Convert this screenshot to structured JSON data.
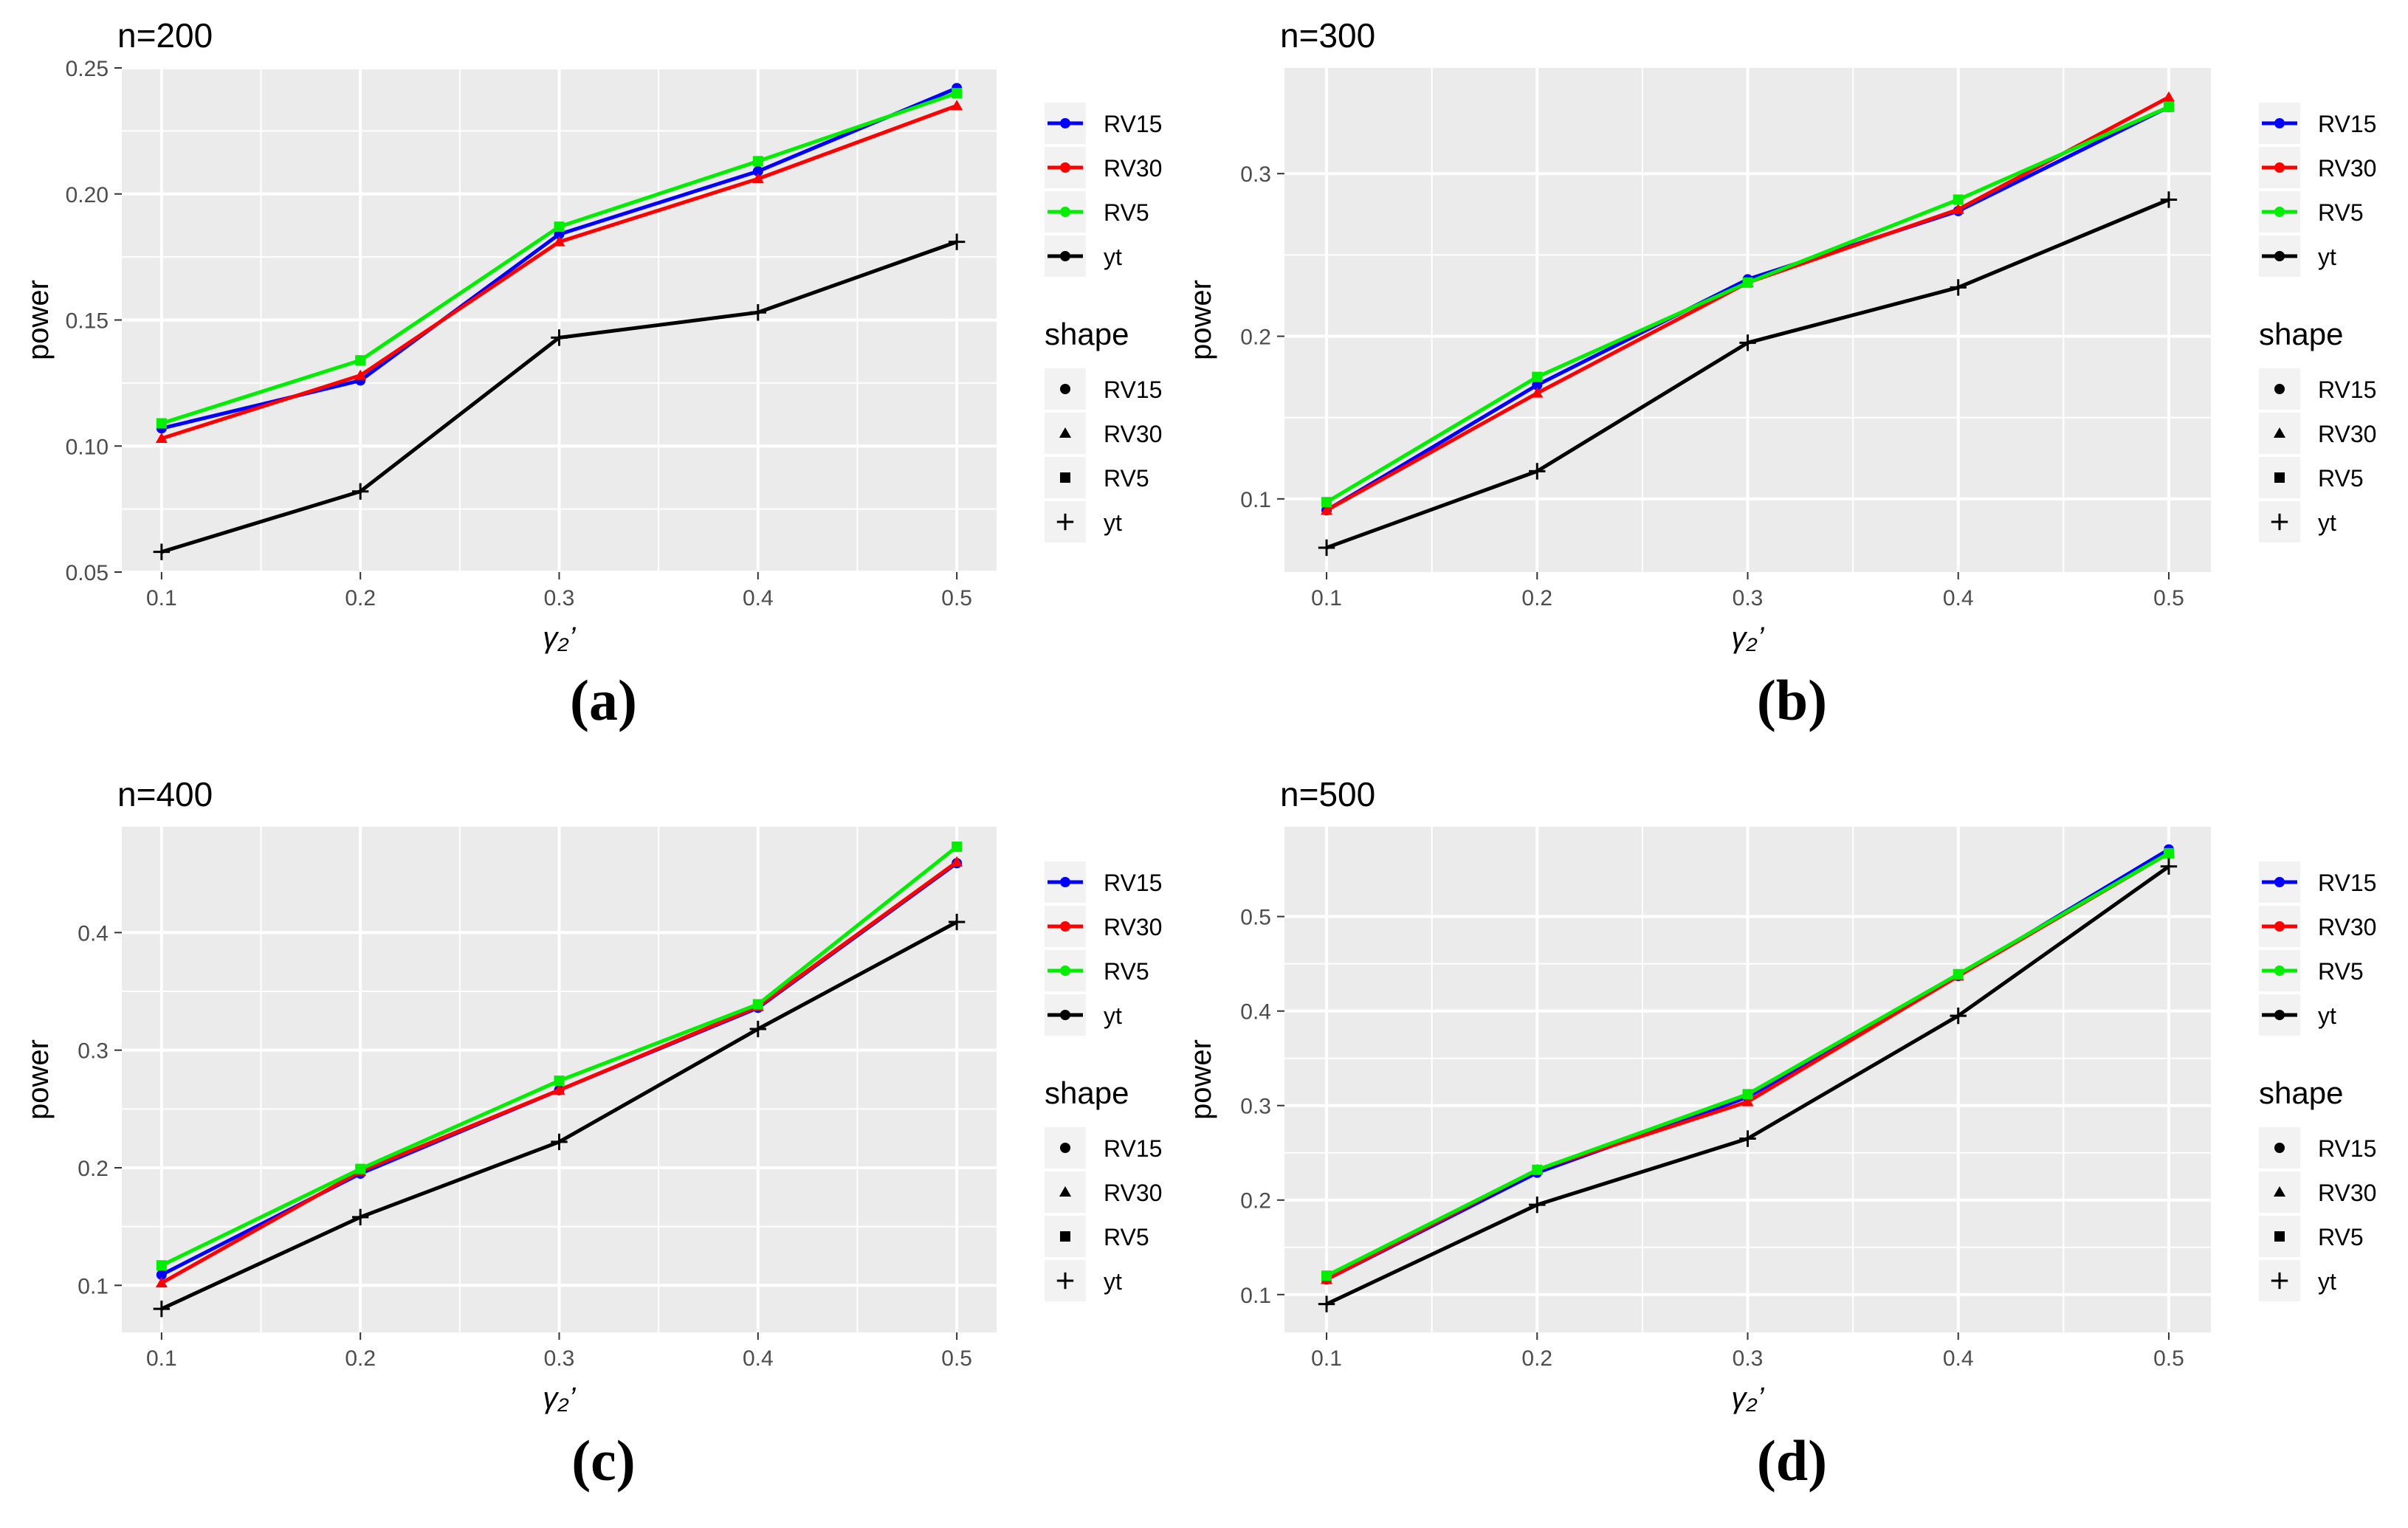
{
  "legend_titles": {
    "shape": "shape"
  },
  "shapes": [
    "circle",
    "triangle",
    "square",
    "plus"
  ],
  "colors": {
    "RV15": "#0000ff",
    "RV30": "#ff0000",
    "RV5": "#00ee00",
    "yt": "#000000",
    "panel_bg": "#ebebeb",
    "grid": "#ffffff",
    "axis_text": "#4d4d4d"
  },
  "chart_data": [
    {
      "type": "line",
      "title": "n=200",
      "caption": "(a)",
      "xlabel": "γ₂’",
      "ylabel": "power",
      "xlim": [
        0.08,
        0.52
      ],
      "ylim": [
        0.05,
        0.25
      ],
      "x": [
        0.1,
        0.2,
        0.3,
        0.4,
        0.5
      ],
      "xticks": [
        "0.1",
        "0.2",
        "0.3",
        "0.4",
        "0.5"
      ],
      "yticks": [
        0.05,
        0.1,
        0.15,
        0.2,
        0.25
      ],
      "ytick_labels": [
        "0.05",
        "0.10",
        "0.15",
        "0.20",
        "0.25"
      ],
      "series": [
        {
          "name": "RV15",
          "values": [
            0.107,
            0.126,
            0.184,
            0.209,
            0.242
          ]
        },
        {
          "name": "RV30",
          "values": [
            0.103,
            0.128,
            0.181,
            0.206,
            0.235
          ]
        },
        {
          "name": "RV5",
          "values": [
            0.109,
            0.134,
            0.187,
            0.213,
            0.24
          ]
        },
        {
          "name": "yt",
          "values": [
            0.058,
            0.082,
            0.143,
            0.153,
            0.181
          ]
        }
      ]
    },
    {
      "type": "line",
      "title": "n=300",
      "caption": "(b)",
      "xlabel": "γ₂’",
      "ylabel": "power",
      "xlim": [
        0.08,
        0.52
      ],
      "ylim": [
        0.055,
        0.365
      ],
      "x": [
        0.1,
        0.2,
        0.3,
        0.4,
        0.5
      ],
      "xticks": [
        "0.1",
        "0.2",
        "0.3",
        "0.4",
        "0.5"
      ],
      "yticks": [
        0.1,
        0.2,
        0.3
      ],
      "ytick_labels": [
        "0.1",
        "0.2",
        "0.3"
      ],
      "series": [
        {
          "name": "RV15",
          "values": [
            0.093,
            0.17,
            0.235,
            0.277,
            0.341
          ]
        },
        {
          "name": "RV30",
          "values": [
            0.093,
            0.165,
            0.233,
            0.278,
            0.347
          ]
        },
        {
          "name": "RV5",
          "values": [
            0.098,
            0.175,
            0.233,
            0.284,
            0.341
          ]
        },
        {
          "name": "yt",
          "values": [
            0.07,
            0.117,
            0.196,
            0.23,
            0.284
          ]
        }
      ]
    },
    {
      "type": "line",
      "title": "n=400",
      "caption": "(c)",
      "xlabel": "γ₂’",
      "ylabel": "power",
      "xlim": [
        0.08,
        0.52
      ],
      "ylim": [
        0.06,
        0.49
      ],
      "x": [
        0.1,
        0.2,
        0.3,
        0.4,
        0.5
      ],
      "xticks": [
        "0.1",
        "0.2",
        "0.3",
        "0.4",
        "0.5"
      ],
      "yticks": [
        0.1,
        0.2,
        0.3,
        0.4
      ],
      "ytick_labels": [
        "0.1",
        "0.2",
        "0.3",
        "0.4"
      ],
      "series": [
        {
          "name": "RV15",
          "values": [
            0.109,
            0.195,
            0.266,
            0.336,
            0.459
          ]
        },
        {
          "name": "RV30",
          "values": [
            0.102,
            0.197,
            0.266,
            0.337,
            0.46
          ]
        },
        {
          "name": "RV5",
          "values": [
            0.117,
            0.199,
            0.274,
            0.339,
            0.473
          ]
        },
        {
          "name": "yt",
          "values": [
            0.08,
            0.158,
            0.222,
            0.318,
            0.409
          ]
        }
      ]
    },
    {
      "type": "line",
      "title": "n=500",
      "caption": "(d)",
      "xlabel": "γ₂’",
      "ylabel": "power",
      "xlim": [
        0.08,
        0.52
      ],
      "ylim": [
        0.06,
        0.595
      ],
      "x": [
        0.1,
        0.2,
        0.3,
        0.4,
        0.5
      ],
      "xticks": [
        "0.1",
        "0.2",
        "0.3",
        "0.4",
        "0.5"
      ],
      "yticks": [
        0.1,
        0.2,
        0.3,
        0.4,
        0.5
      ],
      "ytick_labels": [
        "0.1",
        "0.2",
        "0.3",
        "0.4",
        "0.5"
      ],
      "series": [
        {
          "name": "RV15",
          "values": [
            0.116,
            0.229,
            0.309,
            0.437,
            0.571
          ]
        },
        {
          "name": "RV30",
          "values": [
            0.116,
            0.232,
            0.304,
            0.437,
            0.567
          ]
        },
        {
          "name": "RV5",
          "values": [
            0.12,
            0.232,
            0.312,
            0.439,
            0.567
          ]
        },
        {
          "name": "yt",
          "values": [
            0.09,
            0.195,
            0.265,
            0.395,
            0.553
          ]
        }
      ]
    }
  ]
}
